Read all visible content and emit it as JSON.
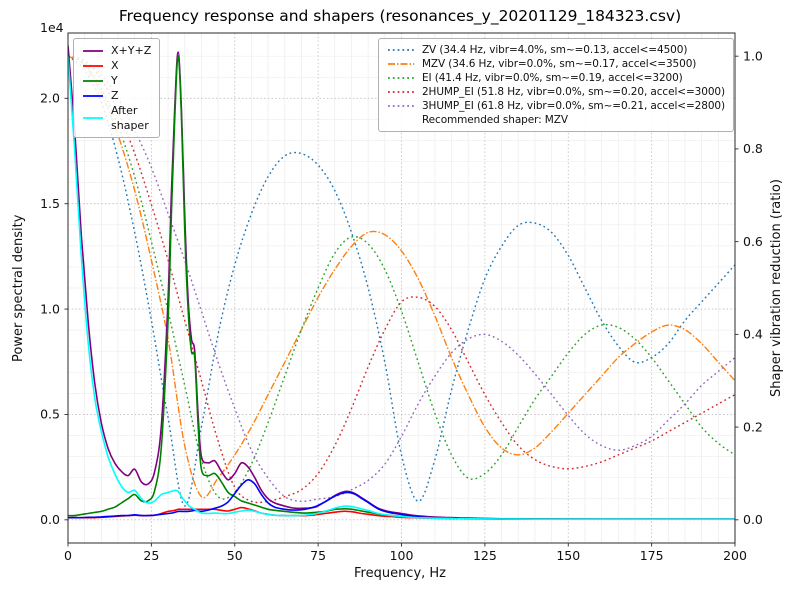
{
  "chart_data": {
    "type": "line",
    "title": "Frequency response and shapers (resonances_y_20201129_184323.csv)",
    "xlabel": "Frequency, Hz",
    "ylabel_left": "Power spectral density",
    "ylabel_right": "Shaper vibration reduction (ratio)",
    "offset_text": "1e4",
    "xlim": [
      0,
      200
    ],
    "ylim_left": [
      -0.11,
      2.31
    ],
    "ylim_right": [
      -0.05,
      1.05
    ],
    "xticks": [
      0,
      25,
      50,
      75,
      100,
      125,
      150,
      175,
      200
    ],
    "yticks_left": [
      0.0,
      0.5,
      1.0,
      1.5,
      2.0
    ],
    "yticks_right": [
      0.0,
      0.2,
      0.4,
      0.6,
      0.8,
      1.0
    ],
    "grid": true,
    "legend_positions": [
      "upper left",
      "upper right"
    ],
    "x_psd": [
      0,
      2,
      4,
      6,
      8,
      10,
      12,
      14,
      16,
      18,
      20,
      22,
      24,
      26,
      28,
      30,
      31,
      32,
      33,
      34,
      35,
      36,
      37,
      38,
      39,
      40,
      42,
      44,
      46,
      48,
      50,
      52,
      54,
      56,
      58,
      60,
      62,
      65,
      68,
      71,
      74,
      77,
      80,
      82,
      84,
      86,
      88,
      90,
      93,
      96,
      100,
      104,
      108,
      112,
      116,
      120,
      130,
      140,
      150,
      160,
      180,
      200
    ],
    "psd_series": [
      {
        "name": "X+Y+Z",
        "color": "#800080",
        "style": "solid",
        "axis": "left",
        "unit": "1e4",
        "values": [
          2.25,
          1.85,
          1.35,
          0.95,
          0.65,
          0.46,
          0.34,
          0.27,
          0.23,
          0.21,
          0.24,
          0.18,
          0.17,
          0.23,
          0.45,
          1.05,
          1.55,
          1.95,
          2.22,
          1.95,
          1.45,
          1.05,
          0.86,
          0.8,
          0.5,
          0.3,
          0.27,
          0.28,
          0.23,
          0.19,
          0.22,
          0.27,
          0.25,
          0.2,
          0.14,
          0.1,
          0.08,
          0.065,
          0.055,
          0.055,
          0.06,
          0.085,
          0.115,
          0.13,
          0.135,
          0.125,
          0.105,
          0.085,
          0.055,
          0.04,
          0.03,
          0.02,
          0.015,
          0.012,
          0.01,
          0.008,
          0.005,
          0.004,
          0.004,
          0.003,
          0.003,
          0.003
        ]
      },
      {
        "name": "X",
        "color": "#ff0000",
        "style": "solid",
        "axis": "left",
        "unit": "1e4",
        "values": [
          0.01,
          0.01,
          0.01,
          0.01,
          0.01,
          0.012,
          0.014,
          0.016,
          0.018,
          0.02,
          0.022,
          0.02,
          0.02,
          0.022,
          0.03,
          0.04,
          0.042,
          0.045,
          0.05,
          0.05,
          0.05,
          0.05,
          0.05,
          0.05,
          0.05,
          0.05,
          0.05,
          0.05,
          0.045,
          0.042,
          0.05,
          0.058,
          0.052,
          0.042,
          0.032,
          0.026,
          0.022,
          0.02,
          0.02,
          0.02,
          0.024,
          0.03,
          0.036,
          0.04,
          0.04,
          0.036,
          0.03,
          0.026,
          0.02,
          0.016,
          0.012,
          0.01,
          0.008,
          0.007,
          0.006,
          0.005,
          0.004,
          0.004,
          0.003,
          0.003,
          0.003,
          0.003
        ]
      },
      {
        "name": "Y",
        "color": "#008000",
        "style": "solid",
        "axis": "left",
        "unit": "1e4",
        "values": [
          0.02,
          0.02,
          0.025,
          0.03,
          0.035,
          0.04,
          0.05,
          0.06,
          0.08,
          0.1,
          0.12,
          0.09,
          0.09,
          0.14,
          0.35,
          0.95,
          1.45,
          1.9,
          2.2,
          1.92,
          1.38,
          1.0,
          0.8,
          0.77,
          0.45,
          0.24,
          0.21,
          0.22,
          0.18,
          0.13,
          0.11,
          0.09,
          0.08,
          0.07,
          0.06,
          0.05,
          0.045,
          0.04,
          0.035,
          0.032,
          0.035,
          0.04,
          0.05,
          0.052,
          0.052,
          0.048,
          0.042,
          0.036,
          0.028,
          0.022,
          0.016,
          0.012,
          0.01,
          0.008,
          0.007,
          0.006,
          0.005,
          0.004,
          0.003,
          0.003,
          0.003,
          0.003
        ]
      },
      {
        "name": "Z",
        "color": "#0000ff",
        "style": "solid",
        "axis": "left",
        "unit": "1e4",
        "values": [
          0.01,
          0.01,
          0.01,
          0.012,
          0.012,
          0.014,
          0.016,
          0.018,
          0.02,
          0.02,
          0.024,
          0.02,
          0.02,
          0.022,
          0.026,
          0.03,
          0.032,
          0.035,
          0.04,
          0.04,
          0.04,
          0.04,
          0.042,
          0.045,
          0.042,
          0.04,
          0.046,
          0.055,
          0.065,
          0.085,
          0.125,
          0.165,
          0.19,
          0.17,
          0.12,
          0.08,
          0.06,
          0.05,
          0.046,
          0.05,
          0.062,
          0.085,
          0.112,
          0.125,
          0.13,
          0.122,
          0.102,
          0.082,
          0.052,
          0.036,
          0.025,
          0.016,
          0.011,
          0.008,
          0.007,
          0.006,
          0.004,
          0.003,
          0.003,
          0.003,
          0.003,
          0.003
        ]
      },
      {
        "name": "After shaper",
        "color": "#00ffff",
        "style": "solid",
        "axis": "left",
        "unit": "1e4",
        "values": [
          2.2,
          1.75,
          1.25,
          0.85,
          0.58,
          0.42,
          0.3,
          0.22,
          0.16,
          0.13,
          0.14,
          0.1,
          0.08,
          0.09,
          0.12,
          0.13,
          0.135,
          0.14,
          0.135,
          0.11,
          0.09,
          0.07,
          0.058,
          0.05,
          0.04,
          0.032,
          0.03,
          0.032,
          0.03,
          0.03,
          0.036,
          0.042,
          0.046,
          0.04,
          0.032,
          0.026,
          0.022,
          0.02,
          0.02,
          0.022,
          0.028,
          0.04,
          0.055,
          0.063,
          0.065,
          0.06,
          0.052,
          0.044,
          0.03,
          0.022,
          0.016,
          0.011,
          0.009,
          0.007,
          0.006,
          0.005,
          0.004,
          0.003,
          0.003,
          0.003,
          0.003,
          0.003
        ]
      }
    ],
    "x_shaper": [
      0,
      5,
      10,
      15,
      20,
      25,
      30,
      35,
      40,
      45,
      50,
      55,
      60,
      65,
      70,
      75,
      80,
      85,
      90,
      95,
      100,
      105,
      110,
      115,
      120,
      125,
      130,
      135,
      140,
      145,
      150,
      155,
      160,
      165,
      170,
      175,
      180,
      185,
      190,
      195,
      200
    ],
    "shaper_series": [
      {
        "name": "ZV",
        "freq_hz": 34.4,
        "vibr_pct": 4.0,
        "smoothing": 0.13,
        "max_accel": 4500,
        "color": "#1f77b4",
        "style": "dotted",
        "axis": "right",
        "values": [
          1.0,
          0.97,
          0.9,
          0.78,
          0.62,
          0.43,
          0.22,
          0.03,
          0.2,
          0.4,
          0.55,
          0.66,
          0.74,
          0.785,
          0.79,
          0.765,
          0.71,
          0.62,
          0.5,
          0.34,
          0.14,
          0.04,
          0.13,
          0.28,
          0.41,
          0.52,
          0.59,
          0.635,
          0.64,
          0.62,
          0.57,
          0.5,
          0.43,
          0.375,
          0.34,
          0.35,
          0.38,
          0.43,
          0.47,
          0.51,
          0.55
        ]
      },
      {
        "name": "MZV",
        "freq_hz": 34.6,
        "vibr_pct": 0.0,
        "smoothing": 0.17,
        "max_accel": 3500,
        "color": "#ff7f0e",
        "style": "dashdot",
        "axis": "right",
        "values": [
          1.0,
          0.98,
          0.92,
          0.83,
          0.71,
          0.56,
          0.39,
          0.16,
          0.05,
          0.09,
          0.14,
          0.2,
          0.27,
          0.34,
          0.41,
          0.48,
          0.54,
          0.59,
          0.62,
          0.615,
          0.58,
          0.52,
          0.44,
          0.35,
          0.27,
          0.2,
          0.155,
          0.14,
          0.155,
          0.19,
          0.23,
          0.27,
          0.31,
          0.35,
          0.38,
          0.405,
          0.42,
          0.41,
          0.38,
          0.34,
          0.3
        ]
      },
      {
        "name": "EI",
        "freq_hz": 41.4,
        "vibr_pct": 0.0,
        "smoothing": 0.19,
        "max_accel": 3200,
        "color": "#2ca02c",
        "style": "dotted",
        "axis": "right",
        "values": [
          1.0,
          0.985,
          0.93,
          0.85,
          0.74,
          0.6,
          0.45,
          0.29,
          0.13,
          0.05,
          0.06,
          0.12,
          0.21,
          0.31,
          0.41,
          0.5,
          0.575,
          0.61,
          0.595,
          0.54,
          0.45,
          0.34,
          0.23,
          0.14,
          0.09,
          0.1,
          0.14,
          0.2,
          0.26,
          0.31,
          0.36,
          0.4,
          0.42,
          0.415,
          0.39,
          0.35,
          0.3,
          0.25,
          0.2,
          0.165,
          0.14
        ]
      },
      {
        "name": "2HUMP_EI",
        "freq_hz": 51.8,
        "vibr_pct": 0.0,
        "smoothing": 0.2,
        "max_accel": 3000,
        "color": "#d62728",
        "style": "dotted",
        "axis": "right",
        "values": [
          1.0,
          0.99,
          0.95,
          0.88,
          0.79,
          0.68,
          0.56,
          0.43,
          0.3,
          0.17,
          0.07,
          0.04,
          0.04,
          0.05,
          0.065,
          0.1,
          0.16,
          0.24,
          0.33,
          0.41,
          0.47,
          0.48,
          0.46,
          0.41,
          0.34,
          0.27,
          0.21,
          0.16,
          0.13,
          0.115,
          0.11,
          0.115,
          0.125,
          0.14,
          0.155,
          0.17,
          0.19,
          0.21,
          0.23,
          0.25,
          0.27
        ]
      },
      {
        "name": "3HUMP_EI",
        "freq_hz": 61.8,
        "vibr_pct": 0.0,
        "smoothing": 0.21,
        "max_accel": 2800,
        "color": "#9467bd",
        "style": "dotted",
        "axis": "right",
        "values": [
          1.0,
          0.99,
          0.96,
          0.91,
          0.84,
          0.76,
          0.66,
          0.56,
          0.45,
          0.34,
          0.24,
          0.15,
          0.09,
          0.05,
          0.04,
          0.045,
          0.05,
          0.065,
          0.085,
          0.12,
          0.18,
          0.25,
          0.31,
          0.36,
          0.39,
          0.4,
          0.385,
          0.355,
          0.315,
          0.27,
          0.225,
          0.185,
          0.16,
          0.15,
          0.16,
          0.18,
          0.215,
          0.25,
          0.29,
          0.32,
          0.35
        ]
      }
    ]
  },
  "legend_psd": {
    "items": [
      {
        "label": "X+Y+Z"
      },
      {
        "label": "X"
      },
      {
        "label": "Y"
      },
      {
        "label": "Z"
      },
      {
        "label": "After\nshaper"
      }
    ]
  },
  "legend_shapers": {
    "items": [
      {
        "label": "ZV (34.4 Hz, vibr=4.0%, sm~=0.13, accel<=4500)"
      },
      {
        "label": "MZV (34.6 Hz, vibr=0.0%, sm~=0.17, accel<=3500)"
      },
      {
        "label": "EI (41.4 Hz, vibr=0.0%, sm~=0.19, accel<=3200)"
      },
      {
        "label": "2HUMP_EI (51.8 Hz, vibr=0.0%, sm~=0.20, accel<=3000)"
      },
      {
        "label": "3HUMP_EI (61.8 Hz, vibr=0.0%, sm~=0.21, accel<=2800)"
      }
    ],
    "recommendation": "Recommended shaper: MZV"
  }
}
